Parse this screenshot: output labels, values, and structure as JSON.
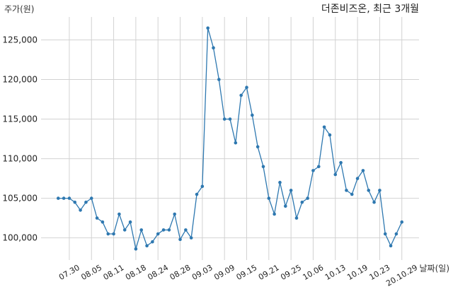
{
  "chart_data": {
    "type": "line",
    "title": "더존비즈온, 최근 3개월",
    "xlabel": "날짜(일)",
    "ylabel": "주가(원)",
    "x": [
      "2020-07-28",
      "2020-07-29",
      "2020-07-30",
      "2020-07-31",
      "2020-08-03",
      "2020-08-04",
      "2020-08-05",
      "2020-08-06",
      "2020-08-07",
      "2020-08-10",
      "2020-08-11",
      "2020-08-12",
      "2020-08-13",
      "2020-08-14",
      "2020-08-18",
      "2020-08-19",
      "2020-08-20",
      "2020-08-21",
      "2020-08-24",
      "2020-08-25",
      "2020-08-26",
      "2020-08-27",
      "2020-08-28",
      "2020-08-31",
      "2020-09-01",
      "2020-09-02",
      "2020-09-03",
      "2020-09-04",
      "2020-09-07",
      "2020-09-08",
      "2020-09-09",
      "2020-09-10",
      "2020-09-11",
      "2020-09-14",
      "2020-09-15",
      "2020-09-16",
      "2020-09-17",
      "2020-09-18",
      "2020-09-21",
      "2020-09-22",
      "2020-09-23",
      "2020-09-24",
      "2020-09-25",
      "2020-09-28",
      "2020-09-29",
      "2020-10-05",
      "2020-10-06",
      "2020-10-07",
      "2020-10-08",
      "2020-10-12",
      "2020-10-13",
      "2020-10-14",
      "2020-10-15",
      "2020-10-16",
      "2020-10-19",
      "2020-10-20",
      "2020-10-21",
      "2020-10-22",
      "2020-10-23",
      "2020-10-26",
      "2020-10-27",
      "2020-10-28",
      "2020-10-29"
    ],
    "series": [
      {
        "values": [
          105000,
          105000,
          105000,
          104500,
          103500,
          104500,
          105000,
          102500,
          102000,
          100500,
          100500,
          103000,
          101000,
          102000,
          98600,
          101000,
          99000,
          99500,
          100500,
          101000,
          101000,
          103000,
          99800,
          101000,
          100000,
          105500,
          106500,
          126500,
          124000,
          120000,
          115000,
          115000,
          112000,
          118000,
          119000,
          115500,
          111500,
          109000,
          105000,
          103000,
          107000,
          104000,
          106000,
          102500,
          104500,
          105000,
          108500,
          109000,
          114000,
          113000,
          108000,
          109500,
          106000,
          105500,
          107500,
          108500,
          106000,
          104500,
          106000,
          100500,
          99000,
          100500,
          102000
        ]
      }
    ],
    "xticks": [
      {
        "date": "2020-07-30",
        "label": "07.30"
      },
      {
        "date": "2020-08-05",
        "label": "08.05"
      },
      {
        "date": "2020-08-11",
        "label": "08.11"
      },
      {
        "date": "2020-08-18",
        "label": "08.18"
      },
      {
        "date": "2020-08-24",
        "label": "08.24"
      },
      {
        "date": "2020-08-28",
        "label": "08.28"
      },
      {
        "date": "2020-09-03",
        "label": "09.03"
      },
      {
        "date": "2020-09-09",
        "label": "09.09"
      },
      {
        "date": "2020-09-15",
        "label": "09.15"
      },
      {
        "date": "2020-09-21",
        "label": "09.21"
      },
      {
        "date": "2020-09-25",
        "label": "09.25"
      },
      {
        "date": "2020-10-06",
        "label": "10.06"
      },
      {
        "date": "2020-10-13",
        "label": "10.13"
      },
      {
        "date": "2020-10-19",
        "label": "10.19"
      },
      {
        "date": "2020-10-23",
        "label": "10.23"
      },
      {
        "date": "2020-10-29",
        "label": "20.10.29"
      }
    ],
    "yticks": [
      {
        "value": 100000,
        "label": "100,000"
      },
      {
        "value": 105000,
        "label": "105,000"
      },
      {
        "value": 110000,
        "label": "110,000"
      },
      {
        "value": 115000,
        "label": "115,000"
      },
      {
        "value": 120000,
        "label": "120,000"
      },
      {
        "value": 125000,
        "label": "125,000"
      }
    ],
    "ylim": [
      97200,
      127900
    ],
    "grid": true,
    "line_color": "#2e78b0",
    "grid_color": "#d2d2d2"
  }
}
